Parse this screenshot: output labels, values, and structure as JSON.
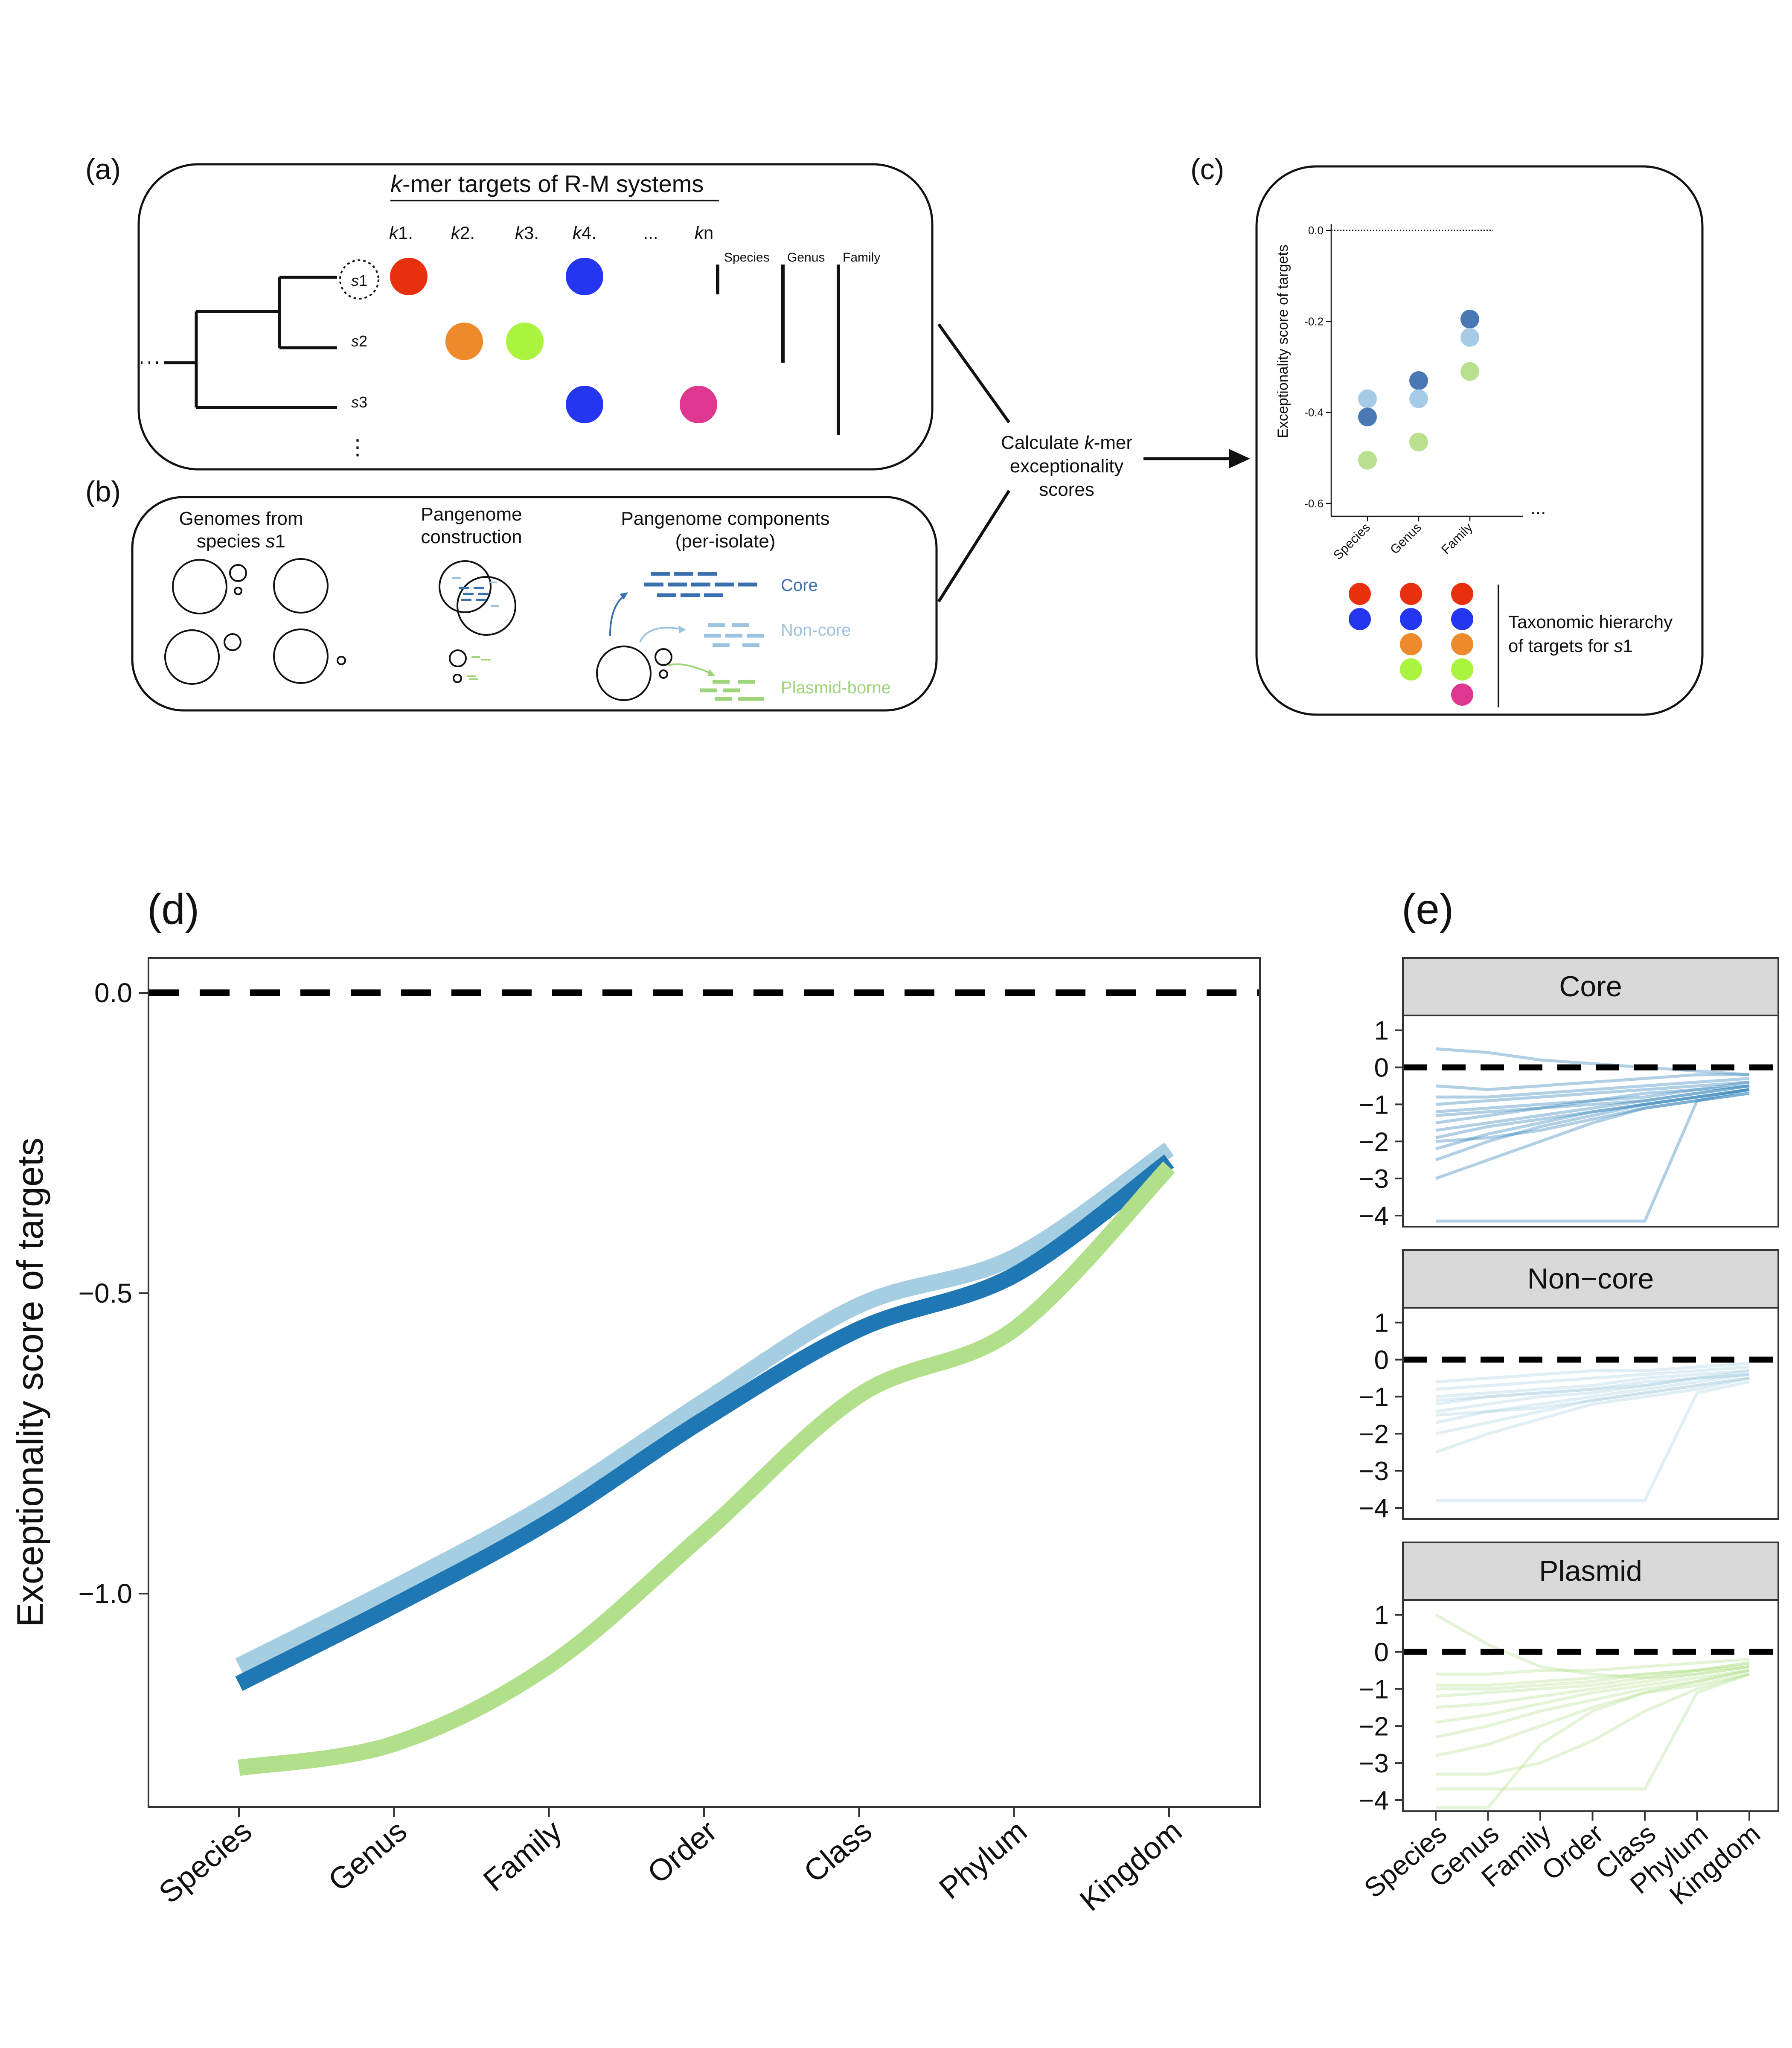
{
  "panel_labels": {
    "a": "(a)",
    "b": "(b)",
    "c": "(c)",
    "d": "(d)",
    "e": "(e)"
  },
  "colors": {
    "k1": "#e8300f",
    "k2": "#ec8a2c",
    "k3": "#aaf33e",
    "k4": "#2436f0",
    "kn": "#df3790",
    "core": "#1f78b4",
    "noncore": "#a6cee3",
    "plasmid": "#b2df8a",
    "core_label": "#3a6fb0",
    "noncore_label": "#9cc4e0",
    "plasmid_label": "#9fd57a",
    "strip_bg": "#d9d9d9"
  },
  "panel_a": {
    "title": "k-mer targets of R-M  systems",
    "title_k": "k",
    "title_rest": "-mer targets of R-M  systems",
    "kmers": [
      {
        "prefix": "k",
        "suffix": "1.",
        "color_key": "k1"
      },
      {
        "prefix": "k",
        "suffix": "2.",
        "color_key": "k2"
      },
      {
        "prefix": "k",
        "suffix": "3.",
        "color_key": "k3"
      },
      {
        "prefix": "k",
        "suffix": "4.",
        "color_key": "k4"
      },
      {
        "prefix": "",
        "suffix": "...",
        "color_key": ""
      },
      {
        "prefix": "k",
        "suffix": "n",
        "color_key": "kn"
      }
    ],
    "species": [
      {
        "s": "s",
        "n": "1"
      },
      {
        "s": "s",
        "n": "2"
      },
      {
        "s": "s",
        "n": "3"
      }
    ],
    "ellipsis_left": "···",
    "ellipsis_down": "⋮",
    "ranks": [
      "Species",
      "Genus",
      "Family"
    ]
  },
  "panel_b": {
    "genomes_title_1": "Genomes from",
    "genomes_title_2a": "species ",
    "genomes_title_2b": "s",
    "genomes_title_2c": "1",
    "pangenome_title_1": "Pangenome",
    "pangenome_title_2": "construction",
    "components_title_1": "Pangenome components",
    "components_title_2": "(per-isolate)",
    "component_labels": [
      "Core",
      "Non-core",
      "Plasmid-borne"
    ]
  },
  "arrow_label": {
    "line1a": "Calculate ",
    "line1b": "k",
    "line1c": "-mer",
    "line2": "exceptionality",
    "line3": "scores"
  },
  "panel_c": {
    "ylabel": "Exceptionality score of targets",
    "yticks": [
      0.0,
      -0.2,
      -0.4,
      -0.6
    ],
    "ytick_labels": [
      "0.0",
      "-0.2",
      "-0.4",
      "-0.6"
    ],
    "xticks": [
      "Species",
      "Genus",
      "Family"
    ],
    "x_ellipsis": "...",
    "points": [
      {
        "rank": "Species",
        "component": "noncore",
        "value": -0.37
      },
      {
        "rank": "Species",
        "component": "core",
        "value": -0.41
      },
      {
        "rank": "Species",
        "component": "plasmid",
        "value": -0.505
      },
      {
        "rank": "Genus",
        "component": "core",
        "value": -0.33
      },
      {
        "rank": "Genus",
        "component": "noncore",
        "value": -0.37
      },
      {
        "rank": "Genus",
        "component": "plasmid",
        "value": -0.465
      },
      {
        "rank": "Family",
        "component": "core",
        "value": -0.195
      },
      {
        "rank": "Family",
        "component": "noncore",
        "value": -0.235
      },
      {
        "rank": "Family",
        "component": "plasmid",
        "value": -0.31
      }
    ],
    "hierarchy": [
      [
        "k1",
        "k4"
      ],
      [
        "k1",
        "k4",
        "k2",
        "k3"
      ],
      [
        "k1",
        "k4",
        "k2",
        "k3",
        "kn"
      ]
    ],
    "hierarchy_label_1": "Taxonomic hierarchy",
    "hierarchy_label_2a": "of targets for ",
    "hierarchy_label_2b": "s",
    "hierarchy_label_2c": "1"
  },
  "chart_data": [
    {
      "type": "line",
      "panel": "(d)",
      "xlabel": "",
      "ylabel": "Exceptionality score of targets",
      "categories": [
        "Species",
        "Genus",
        "Family",
        "Order",
        "Class",
        "Phylum",
        "Kingdom"
      ],
      "ylim": [
        -1.35,
        0.04
      ],
      "yticks": [
        0.0,
        -0.5,
        -1.0
      ],
      "ytick_labels": [
        "0.0",
        "−0.5",
        "−1.0"
      ],
      "reference_line": 0.0,
      "series": [
        {
          "color_key": "noncore",
          "values": [
            -1.12,
            -0.99,
            -0.85,
            -0.68,
            -0.52,
            -0.44,
            -0.26
          ]
        },
        {
          "color_key": "core",
          "values": [
            -1.15,
            -1.02,
            -0.88,
            -0.71,
            -0.56,
            -0.47,
            -0.28
          ]
        },
        {
          "color_key": "plasmid",
          "values": [
            -1.29,
            -1.25,
            -1.12,
            -0.9,
            -0.67,
            -0.56,
            -0.29
          ]
        }
      ]
    },
    {
      "type": "line",
      "panel": "(e)",
      "categories": [
        "Species",
        "Genus",
        "Family",
        "Order",
        "Class",
        "Phylum",
        "Kingdom"
      ],
      "ylim": [
        -4.3,
        1.4
      ],
      "yticks": [
        1,
        0,
        -1,
        -2,
        -3,
        -4
      ],
      "ytick_labels": [
        "1",
        "0",
        "−1",
        "−2",
        "−3",
        "−4"
      ],
      "reference_line": 0,
      "facets": [
        {
          "strip": "Core",
          "color_key": "core",
          "lines": [
            [
              0.5,
              0.4,
              0.2,
              0.1,
              0.0,
              -0.1,
              -0.2
            ],
            [
              -0.5,
              -0.6,
              -0.5,
              -0.4,
              -0.3,
              -0.2,
              -0.2
            ],
            [
              -1.0,
              -0.9,
              -0.8,
              -0.7,
              -0.6,
              -0.5,
              -0.4
            ],
            [
              -1.2,
              -1.1,
              -1.0,
              -0.9,
              -0.7,
              -0.6,
              -0.4
            ],
            [
              -1.5,
              -1.3,
              -1.1,
              -0.9,
              -0.8,
              -0.6,
              -0.5
            ],
            [
              -1.7,
              -1.5,
              -1.3,
              -1.1,
              -0.9,
              -0.7,
              -0.5
            ],
            [
              -1.9,
              -1.6,
              -1.4,
              -1.2,
              -1.0,
              -0.8,
              -0.6
            ],
            [
              -2.2,
              -1.8,
              -1.5,
              -1.2,
              -1.0,
              -0.8,
              -0.6
            ],
            [
              -2.5,
              -2.0,
              -1.6,
              -1.3,
              -1.0,
              -0.8,
              -0.6
            ],
            [
              -3.0,
              -2.5,
              -2.0,
              -1.5,
              -1.1,
              -0.9,
              -0.7
            ],
            [
              -4.15,
              -4.15,
              -4.15,
              -4.15,
              -4.15,
              -0.9,
              -0.6
            ],
            [
              -0.8,
              -0.8,
              -0.7,
              -0.6,
              -0.5,
              -0.4,
              -0.3
            ],
            [
              -1.3,
              -1.2,
              -1.1,
              -1.0,
              -0.9,
              -0.7,
              -0.5
            ],
            [
              -2.0,
              -1.9,
              -1.7,
              -1.4,
              -1.1,
              -0.9,
              -0.7
            ]
          ]
        },
        {
          "strip": "Non−core",
          "color_key": "noncore",
          "lines": [
            [
              -0.6,
              -0.5,
              -0.4,
              -0.3,
              -0.3,
              -0.2,
              -0.1
            ],
            [
              -0.8,
              -0.7,
              -0.6,
              -0.5,
              -0.4,
              -0.3,
              -0.2
            ],
            [
              -1.0,
              -0.9,
              -0.8,
              -0.7,
              -0.5,
              -0.4,
              -0.3
            ],
            [
              -1.2,
              -1.0,
              -0.9,
              -0.8,
              -0.6,
              -0.5,
              -0.3
            ],
            [
              -1.4,
              -1.2,
              -1.0,
              -0.9,
              -0.7,
              -0.5,
              -0.4
            ],
            [
              -1.7,
              -1.4,
              -1.2,
              -1.0,
              -0.8,
              -0.6,
              -0.4
            ],
            [
              -2.0,
              -1.7,
              -1.4,
              -1.1,
              -0.9,
              -0.7,
              -0.5
            ],
            [
              -2.5,
              -2.0,
              -1.6,
              -1.2,
              -1.0,
              -0.8,
              -0.5
            ],
            [
              -3.8,
              -3.8,
              -3.8,
              -3.8,
              -3.8,
              -0.9,
              -0.6
            ],
            [
              -1.1,
              -1.0,
              -0.9,
              -0.8,
              -0.7,
              -0.5,
              -0.4
            ],
            [
              -1.5,
              -1.4,
              -1.3,
              -1.1,
              -0.9,
              -0.7,
              -0.5
            ]
          ]
        },
        {
          "strip": "Plasmid",
          "color_key": "plasmid",
          "lines": [
            [
              1.0,
              0.2,
              -0.4,
              -0.6,
              -0.7,
              -0.6,
              -0.4
            ],
            [
              -0.6,
              -0.6,
              -0.5,
              -0.5,
              -0.4,
              -0.3,
              -0.2
            ],
            [
              -0.9,
              -0.9,
              -0.8,
              -0.7,
              -0.6,
              -0.5,
              -0.3
            ],
            [
              -1.2,
              -1.1,
              -1.0,
              -0.9,
              -0.7,
              -0.5,
              -0.4
            ],
            [
              -1.5,
              -1.4,
              -1.2,
              -1.0,
              -0.8,
              -0.6,
              -0.4
            ],
            [
              -1.9,
              -1.7,
              -1.4,
              -1.1,
              -0.9,
              -0.7,
              -0.5
            ],
            [
              -2.3,
              -2.0,
              -1.6,
              -1.3,
              -1.0,
              -0.8,
              -0.5
            ],
            [
              -2.8,
              -2.5,
              -2.0,
              -1.5,
              -1.1,
              -0.9,
              -0.6
            ],
            [
              -3.3,
              -3.3,
              -3.0,
              -2.4,
              -1.6,
              -1.0,
              -0.6
            ],
            [
              -3.7,
              -3.7,
              -3.7,
              -3.7,
              -3.7,
              -1.1,
              -0.6
            ],
            [
              -4.2,
              -4.2,
              -2.5,
              -1.6,
              -1.1,
              -0.8,
              -0.5
            ],
            [
              -1.0,
              -1.0,
              -0.9,
              -0.8,
              -0.6,
              -0.5,
              -0.3
            ]
          ]
        }
      ]
    }
  ]
}
